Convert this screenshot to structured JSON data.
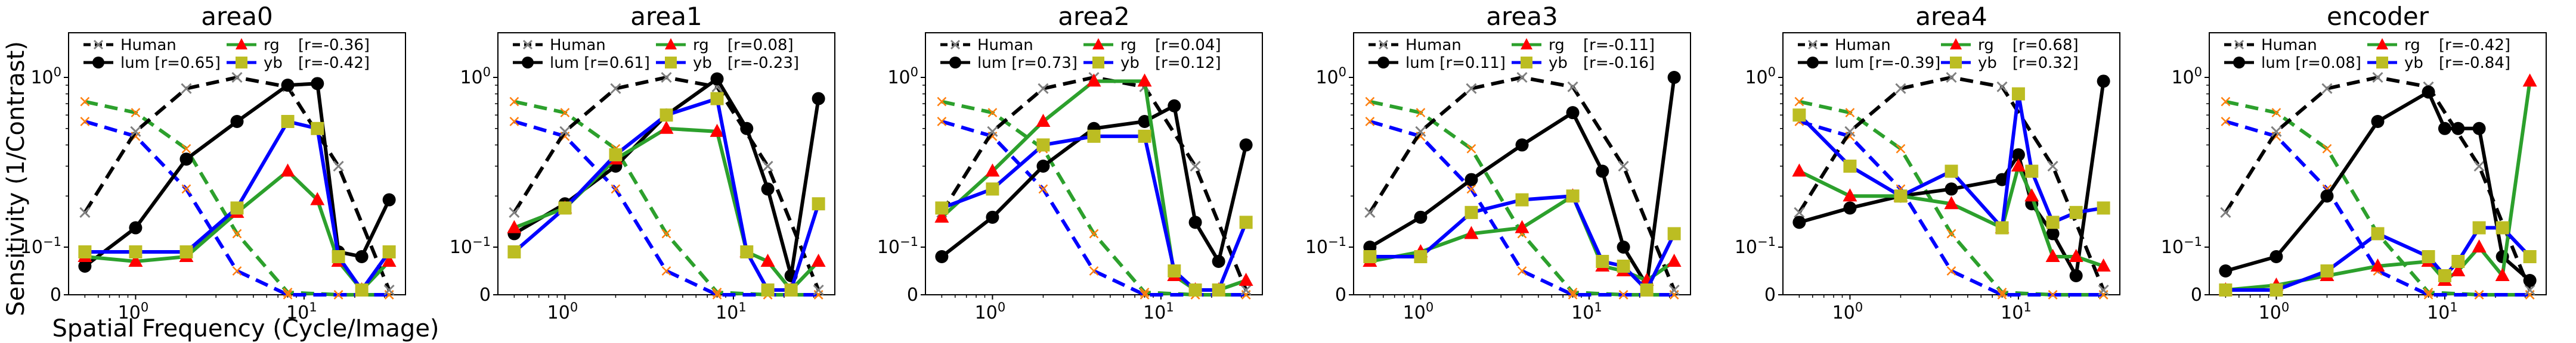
{
  "figure": {
    "ylabel": "Sensitivity (1/Contrast)",
    "xlabel": "Spatial Frequency (Cycle/Image)"
  },
  "colors": {
    "Human": "#808080",
    "lum": "#000000",
    "rg": "#2ca02c",
    "yb": "#0000ff",
    "rg_marker": "#ff0000",
    "yb_marker": "#bcbd22",
    "human_marker": "#ff7f0e"
  },
  "chart_data": [
    {
      "type": "line",
      "title": "area0",
      "xscale": "log",
      "yscale": "symlog",
      "legend": [
        "Human",
        "lum [r=0.65]",
        "rg",
        "[r=-0.36]",
        "yb",
        "[r=-0.42]"
      ],
      "x": [
        0.5,
        1,
        2,
        4,
        8,
        16,
        32
      ],
      "series": [
        {
          "name": "Human",
          "x": [
            0.5,
            1,
            2,
            4,
            8,
            16,
            32
          ],
          "values": [
            0.16,
            0.48,
            0.86,
            1.0,
            0.88,
            0.3,
            0.01
          ]
        },
        {
          "name": "lum",
          "x": [
            0.5,
            1,
            2,
            4,
            8,
            12,
            16,
            22,
            32
          ],
          "values": [
            0.06,
            0.13,
            0.33,
            0.55,
            0.9,
            0.92,
            0.09,
            0.08,
            0.19
          ]
        },
        {
          "name": "rg",
          "x": [
            0.5,
            1,
            2,
            4,
            8,
            12,
            16,
            22,
            32
          ],
          "values": [
            0.08,
            0.07,
            0.08,
            0.16,
            0.28,
            0.19,
            0.07,
            0.01,
            0.07
          ]
        },
        {
          "name": "yb",
          "x": [
            0.5,
            1,
            2,
            4,
            8,
            12,
            16,
            22,
            32
          ],
          "values": [
            0.09,
            0.09,
            0.09,
            0.17,
            0.55,
            0.5,
            0.08,
            0.01,
            0.09
          ]
        }
      ],
      "human_dashed": [
        {
          "name": "Human rg",
          "x": [
            0.5,
            1,
            2,
            4,
            8,
            16,
            32
          ],
          "values": [
            0.72,
            0.62,
            0.38,
            0.12,
            0.005,
            0.0,
            0.0
          ]
        },
        {
          "name": "Human yb",
          "x": [
            0.5,
            1,
            2,
            4,
            8,
            16,
            32
          ],
          "values": [
            0.55,
            0.45,
            0.22,
            0.05,
            0.0,
            0.0,
            0.0
          ]
        }
      ]
    },
    {
      "type": "line",
      "title": "area1",
      "xscale": "log",
      "yscale": "symlog",
      "legend": [
        "Human",
        "lum [r=0.61]",
        "rg",
        "[r=0.08]",
        "yb",
        "[r=-0.23]"
      ],
      "x": [
        0.5,
        1,
        2,
        4,
        8,
        16,
        32
      ],
      "series": [
        {
          "name": "Human",
          "x": [
            0.5,
            1,
            2,
            4,
            8,
            16,
            32
          ],
          "values": [
            0.16,
            0.48,
            0.86,
            1.0,
            0.88,
            0.3,
            0.01
          ]
        },
        {
          "name": "lum",
          "x": [
            0.5,
            1,
            2,
            4,
            8,
            12,
            16,
            22,
            32
          ],
          "values": [
            0.12,
            0.18,
            0.3,
            0.6,
            0.98,
            0.5,
            0.22,
            0.04,
            0.75
          ]
        },
        {
          "name": "rg",
          "x": [
            0.5,
            1,
            2,
            4,
            8,
            12,
            16,
            22,
            32
          ],
          "values": [
            0.13,
            0.17,
            0.33,
            0.5,
            0.48,
            0.09,
            0.07,
            0.01,
            0.07
          ]
        },
        {
          "name": "yb",
          "x": [
            0.5,
            1,
            2,
            4,
            8,
            12,
            16,
            22,
            32
          ],
          "values": [
            0.09,
            0.17,
            0.35,
            0.6,
            0.75,
            0.09,
            0.01,
            0.01,
            0.18
          ]
        }
      ],
      "human_dashed": [
        {
          "name": "Human rg",
          "x": [
            0.5,
            1,
            2,
            4,
            8,
            16,
            32
          ],
          "values": [
            0.72,
            0.62,
            0.38,
            0.12,
            0.005,
            0.0,
            0.0
          ]
        },
        {
          "name": "Human yb",
          "x": [
            0.5,
            1,
            2,
            4,
            8,
            16,
            32
          ],
          "values": [
            0.55,
            0.45,
            0.22,
            0.05,
            0.0,
            0.0,
            0.0
          ]
        }
      ]
    },
    {
      "type": "line",
      "title": "area2",
      "xscale": "log",
      "yscale": "symlog",
      "legend": [
        "Human",
        "lum [r=0.73]",
        "rg",
        "[r=0.04]",
        "yb",
        "[r=0.12]"
      ],
      "x": [
        0.5,
        1,
        2,
        4,
        8,
        16,
        32
      ],
      "series": [
        {
          "name": "Human",
          "x": [
            0.5,
            1,
            2,
            4,
            8,
            16,
            32
          ],
          "values": [
            0.16,
            0.48,
            0.86,
            1.0,
            0.88,
            0.3,
            0.01
          ]
        },
        {
          "name": "lum",
          "x": [
            0.5,
            1,
            2,
            4,
            8,
            12,
            16,
            22,
            32
          ],
          "values": [
            0.08,
            0.15,
            0.3,
            0.5,
            0.55,
            0.68,
            0.14,
            0.07,
            0.4
          ]
        },
        {
          "name": "rg",
          "x": [
            0.5,
            1,
            2,
            4,
            8,
            12,
            16,
            22,
            32
          ],
          "values": [
            0.15,
            0.28,
            0.55,
            0.95,
            0.95,
            0.04,
            0.01,
            0.01,
            0.03
          ]
        },
        {
          "name": "yb",
          "x": [
            0.5,
            1,
            2,
            4,
            8,
            12,
            16,
            22,
            32
          ],
          "values": [
            0.17,
            0.22,
            0.4,
            0.45,
            0.45,
            0.05,
            0.01,
            0.01,
            0.14
          ]
        }
      ],
      "human_dashed": [
        {
          "name": "Human rg",
          "x": [
            0.5,
            1,
            2,
            4,
            8,
            16,
            32
          ],
          "values": [
            0.72,
            0.62,
            0.38,
            0.12,
            0.005,
            0.0,
            0.0
          ]
        },
        {
          "name": "Human yb",
          "x": [
            0.5,
            1,
            2,
            4,
            8,
            16,
            32
          ],
          "values": [
            0.55,
            0.45,
            0.22,
            0.05,
            0.0,
            0.0,
            0.0
          ]
        }
      ]
    },
    {
      "type": "line",
      "title": "area3",
      "xscale": "log",
      "yscale": "symlog",
      "legend": [
        "Human",
        "lum [r=0.11]",
        "rg",
        "[r=-0.11]",
        "yb",
        "[r=-0.16]"
      ],
      "x": [
        0.5,
        1,
        2,
        4,
        8,
        16,
        32
      ],
      "series": [
        {
          "name": "Human",
          "x": [
            0.5,
            1,
            2,
            4,
            8,
            16,
            32
          ],
          "values": [
            0.16,
            0.48,
            0.86,
            1.0,
            0.88,
            0.3,
            0.01
          ]
        },
        {
          "name": "lum",
          "x": [
            0.5,
            1,
            2,
            4,
            8,
            12,
            16,
            22,
            32
          ],
          "values": [
            0.1,
            0.15,
            0.25,
            0.4,
            0.62,
            0.28,
            0.1,
            0.02,
            1.0
          ]
        },
        {
          "name": "rg",
          "x": [
            0.5,
            1,
            2,
            4,
            8,
            12,
            16,
            22,
            32
          ],
          "values": [
            0.07,
            0.09,
            0.12,
            0.13,
            0.2,
            0.06,
            0.05,
            0.03,
            0.07
          ]
        },
        {
          "name": "yb",
          "x": [
            0.5,
            1,
            2,
            4,
            8,
            12,
            16,
            22,
            32
          ],
          "values": [
            0.08,
            0.08,
            0.16,
            0.19,
            0.2,
            0.07,
            0.06,
            0.01,
            0.12
          ]
        }
      ],
      "human_dashed": [
        {
          "name": "Human rg",
          "x": [
            0.5,
            1,
            2,
            4,
            8,
            16,
            32
          ],
          "values": [
            0.72,
            0.62,
            0.38,
            0.12,
            0.005,
            0.0,
            0.0
          ]
        },
        {
          "name": "Human yb",
          "x": [
            0.5,
            1,
            2,
            4,
            8,
            16,
            32
          ],
          "values": [
            0.55,
            0.45,
            0.22,
            0.05,
            0.0,
            0.0,
            0.0
          ]
        }
      ]
    },
    {
      "type": "line",
      "title": "area4",
      "xscale": "log",
      "yscale": "symlog",
      "legend": [
        "Human",
        "lum [r=-0.39]",
        "rg",
        "[r=0.68]",
        "yb",
        "[r=0.32]"
      ],
      "x": [
        0.5,
        1,
        2,
        4,
        8,
        16,
        32
      ],
      "series": [
        {
          "name": "Human",
          "x": [
            0.5,
            1,
            2,
            4,
            8,
            16,
            32
          ],
          "values": [
            0.16,
            0.48,
            0.86,
            1.0,
            0.88,
            0.3,
            0.01
          ]
        },
        {
          "name": "lum",
          "x": [
            0.5,
            1,
            2,
            4,
            8,
            10,
            12,
            16,
            22,
            32
          ],
          "values": [
            0.14,
            0.17,
            0.2,
            0.22,
            0.25,
            0.35,
            0.18,
            0.12,
            0.04,
            0.95
          ]
        },
        {
          "name": "rg",
          "x": [
            0.5,
            1,
            2,
            4,
            8,
            10,
            12,
            16,
            22,
            32
          ],
          "values": [
            0.28,
            0.2,
            0.2,
            0.18,
            0.13,
            0.3,
            0.2,
            0.08,
            0.08,
            0.06
          ]
        },
        {
          "name": "yb",
          "x": [
            0.5,
            1,
            2,
            4,
            8,
            10,
            12,
            16,
            22,
            32
          ],
          "values": [
            0.6,
            0.3,
            0.2,
            0.28,
            0.13,
            0.8,
            0.28,
            0.14,
            0.16,
            0.17
          ]
        }
      ],
      "human_dashed": [
        {
          "name": "Human rg",
          "x": [
            0.5,
            1,
            2,
            4,
            8,
            16,
            32
          ],
          "values": [
            0.72,
            0.62,
            0.38,
            0.12,
            0.005,
            0.0,
            0.0
          ]
        },
        {
          "name": "Human yb",
          "x": [
            0.5,
            1,
            2,
            4,
            8,
            16,
            32
          ],
          "values": [
            0.55,
            0.45,
            0.22,
            0.05,
            0.0,
            0.0,
            0.0
          ]
        }
      ]
    },
    {
      "type": "line",
      "title": "encoder",
      "xscale": "log",
      "yscale": "symlog",
      "legend": [
        "Human",
        "lum [r=0.08]",
        "rg",
        "[r=-0.42]",
        "yb",
        "[r=-0.84]"
      ],
      "x": [
        0.5,
        1,
        2,
        4,
        8,
        16,
        32
      ],
      "series": [
        {
          "name": "Human",
          "x": [
            0.5,
            1,
            2,
            4,
            8,
            16,
            32
          ],
          "values": [
            0.16,
            0.48,
            0.86,
            1.0,
            0.88,
            0.3,
            0.01
          ]
        },
        {
          "name": "lum",
          "x": [
            0.5,
            1,
            2,
            4,
            8,
            10,
            12,
            16,
            22,
            32
          ],
          "values": [
            0.05,
            0.08,
            0.2,
            0.55,
            0.82,
            0.5,
            0.5,
            0.5,
            0.08,
            0.03
          ]
        },
        {
          "name": "rg",
          "x": [
            0.5,
            1,
            2,
            4,
            8,
            10,
            12,
            16,
            22,
            32
          ],
          "values": [
            0.01,
            0.02,
            0.04,
            0.06,
            0.07,
            0.03,
            0.05,
            0.1,
            0.04,
            0.95
          ]
        },
        {
          "name": "yb",
          "x": [
            0.5,
            1,
            2,
            4,
            8,
            10,
            12,
            16,
            22,
            32
          ],
          "values": [
            0.01,
            0.01,
            0.05,
            0.12,
            0.08,
            0.04,
            0.07,
            0.13,
            0.13,
            0.08
          ]
        }
      ],
      "human_dashed": [
        {
          "name": "Human rg",
          "x": [
            0.5,
            1,
            2,
            4,
            8,
            16,
            32
          ],
          "values": [
            0.72,
            0.62,
            0.38,
            0.12,
            0.005,
            0.0,
            0.0
          ]
        },
        {
          "name": "Human yb",
          "x": [
            0.5,
            1,
            2,
            4,
            8,
            16,
            32
          ],
          "values": [
            0.55,
            0.45,
            0.22,
            0.05,
            0.0,
            0.0,
            0.0
          ]
        }
      ]
    }
  ]
}
